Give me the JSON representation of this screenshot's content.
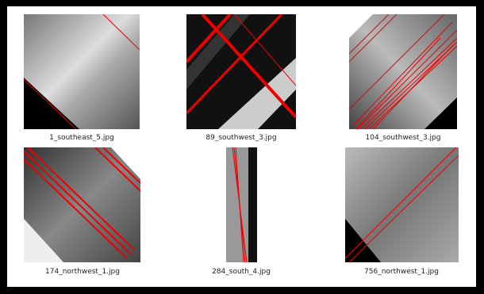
{
  "files": [
    {
      "name": "1_southeast_5.jpg"
    },
    {
      "name": "89_southwest_3.jpg"
    },
    {
      "name": "104_southwest_3.jpg"
    },
    {
      "name": "174_northwest_1.jpg"
    },
    {
      "name": "284_south_4.jpg"
    },
    {
      "name": "756_northwest_1.jpg"
    }
  ]
}
